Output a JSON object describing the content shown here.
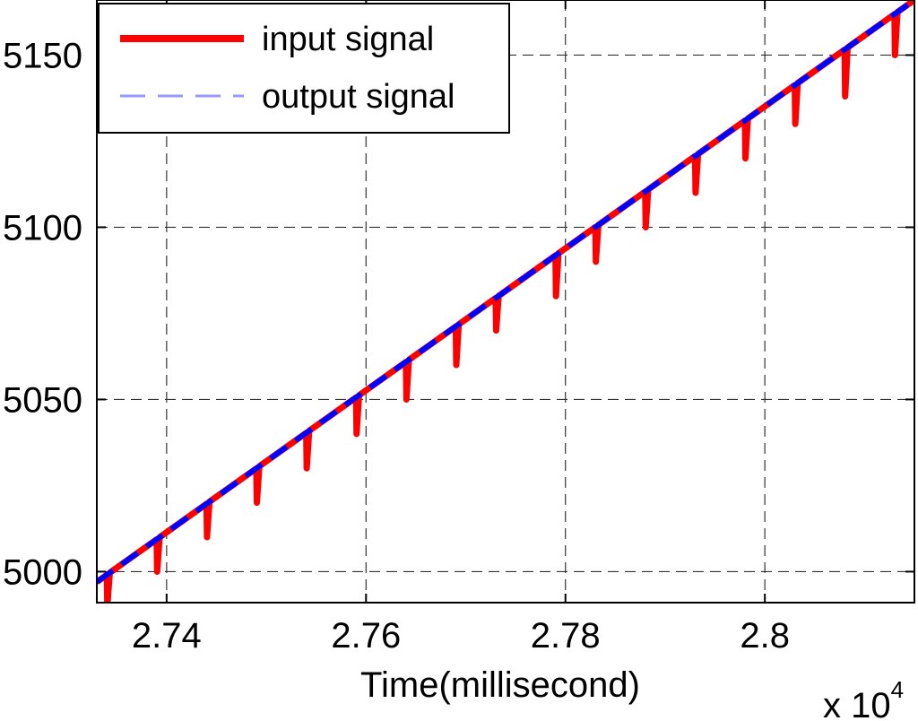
{
  "chart_data": {
    "type": "line",
    "title": "",
    "xlabel": "Time(millisecond)",
    "ylabel": "",
    "x_multiplier_label": "x 10",
    "x_multiplier_exponent": "4",
    "xlim": [
      27330,
      28150
    ],
    "ylim": [
      4991,
      5166
    ],
    "x_ticks": [
      27400,
      27600,
      27800,
      28000
    ],
    "x_tick_labels": [
      "2.74",
      "2.76",
      "2.78",
      "2.8"
    ],
    "y_ticks": [
      5000,
      5050,
      5100,
      5150
    ],
    "y_tick_labels": [
      "5000",
      "5050",
      "5100",
      "5150"
    ],
    "grid": true,
    "legend_position": "top-left",
    "series": [
      {
        "name": "input signal",
        "color": "#ff0000",
        "style": "solid",
        "start": [
          27330,
          4997
        ],
        "end": [
          28150,
          5166
        ],
        "dips": [
          [
            27340,
            4990
          ],
          [
            27390,
            5000
          ],
          [
            27440,
            5010
          ],
          [
            27490,
            5020
          ],
          [
            27540,
            5030
          ],
          [
            27590,
            5040
          ],
          [
            27640,
            5050
          ],
          [
            27690,
            5060
          ],
          [
            27730,
            5070
          ],
          [
            27790,
            5080
          ],
          [
            27830,
            5090
          ],
          [
            27880,
            5100
          ],
          [
            27930,
            5110
          ],
          [
            27980,
            5120
          ],
          [
            28030,
            5130
          ],
          [
            28080,
            5138
          ],
          [
            28130,
            5150
          ]
        ]
      },
      {
        "name": "output signal",
        "color": "#0000ff",
        "style": "dashed",
        "start": [
          27330,
          4997
        ],
        "end": [
          28150,
          5166
        ]
      }
    ]
  }
}
